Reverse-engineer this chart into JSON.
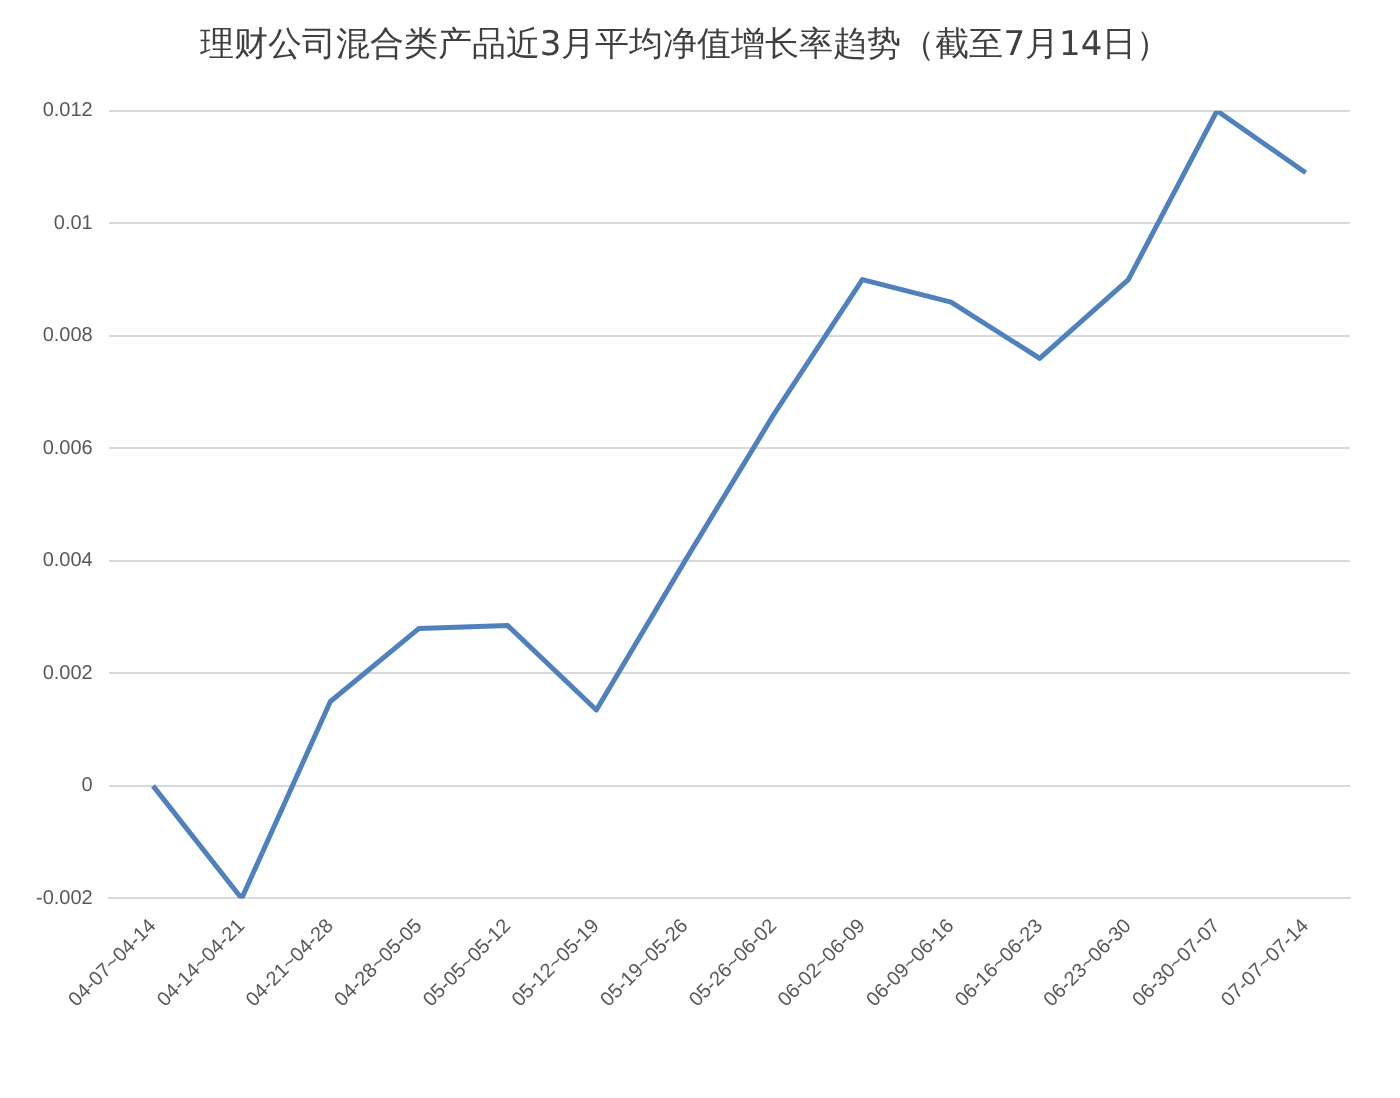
{
  "chart_data": {
    "type": "line",
    "title": "理财公司混合类产品近3月平均净值增长率趋势（截至7月14日）",
    "categories": [
      "04-07~04-14",
      "04-14~04-21",
      "04-21~04-28",
      "04-28~05-05",
      "05-05~05-12",
      "05-12~05-19",
      "05-19~05-26",
      "05-26~06-02",
      "06-02~06-09",
      "06-09~06-16",
      "06-16~06-23",
      "06-23~06-30",
      "06-30~07-07",
      "07-07~07-14"
    ],
    "series": [
      {
        "color": "#4f81bd",
        "values": [
          0.0,
          -0.002,
          0.0015,
          0.0028,
          0.00285,
          0.00135,
          0.004,
          0.0066,
          0.009,
          0.0086,
          0.0076,
          0.009,
          0.012,
          0.0109
        ]
      }
    ],
    "ylim": [
      -0.002,
      0.012
    ],
    "yticks": [
      -0.002,
      0,
      0.002,
      0.004,
      0.006,
      0.008,
      0.01,
      0.012
    ],
    "grid": "y",
    "legend": false,
    "marker": "none",
    "line_style": "solid"
  }
}
